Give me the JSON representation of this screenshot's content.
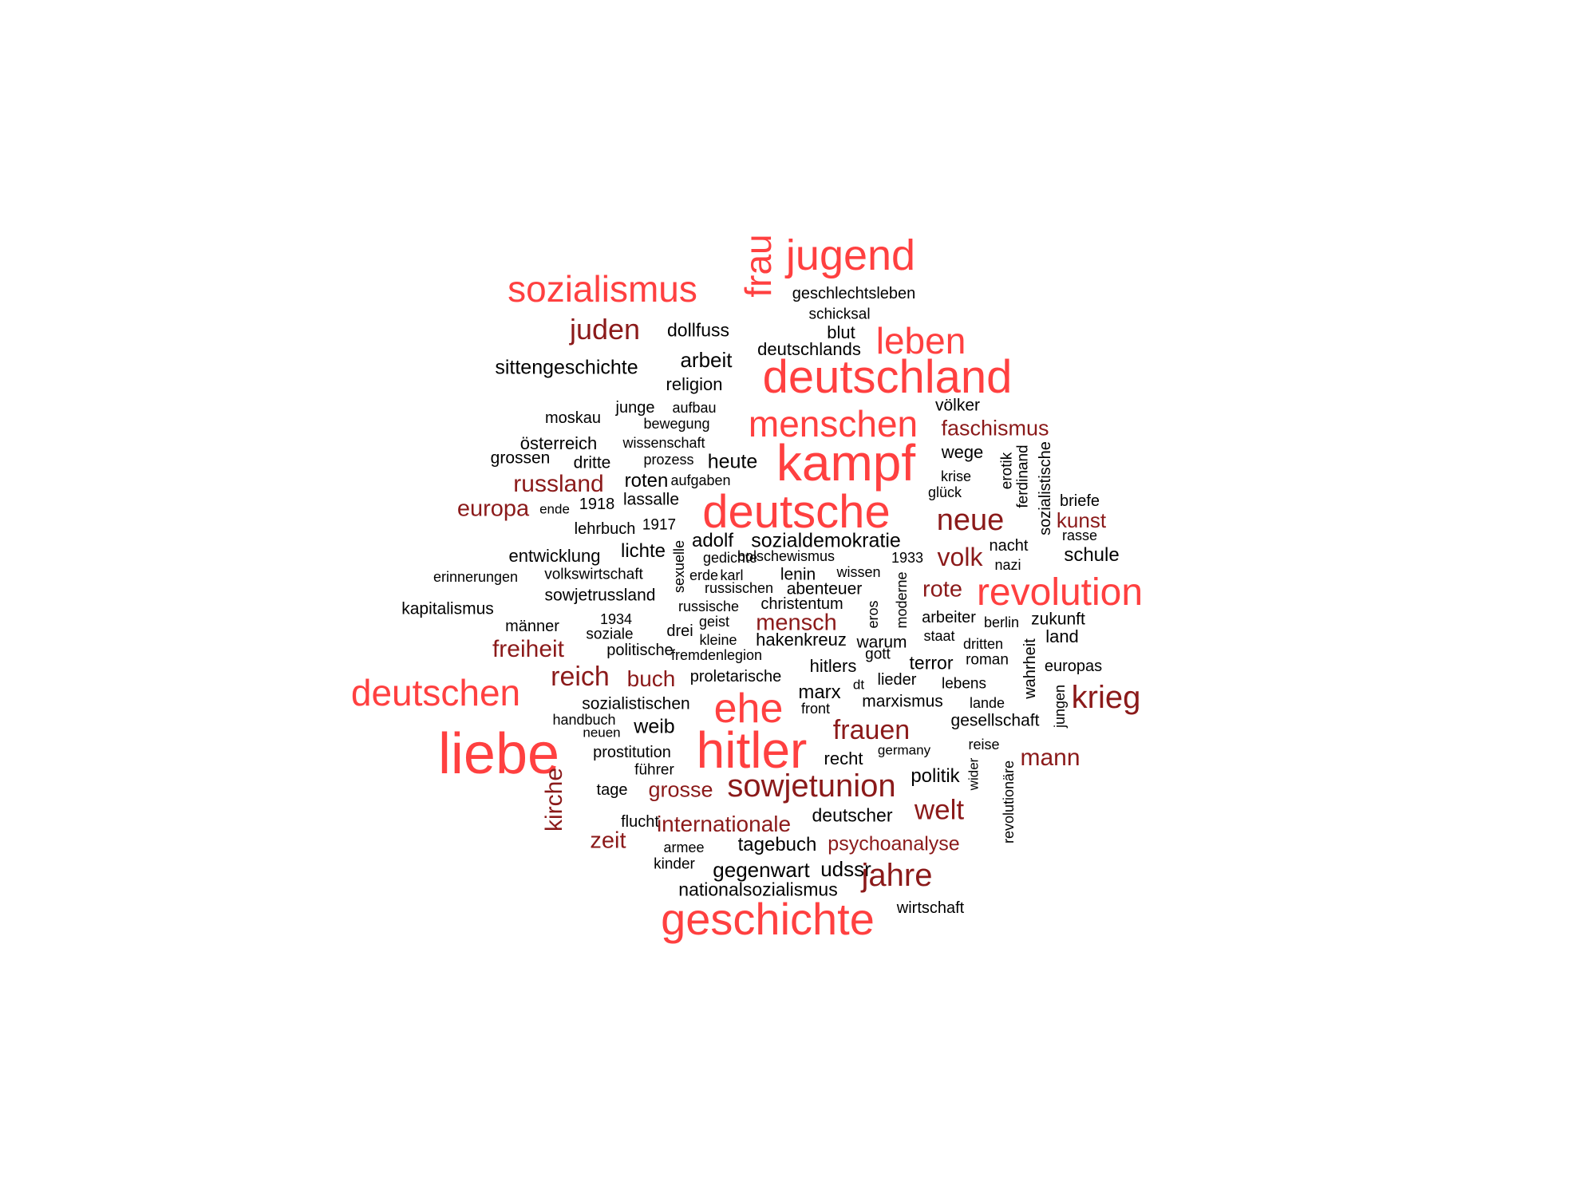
{
  "colors": {
    "red": "#ff4040",
    "dark": "#8b1a1a",
    "black": "#000000"
  },
  "words": [
    {
      "t": "sozialismus",
      "c": "red"
    },
    {
      "t": "jugend",
      "c": "red"
    },
    {
      "t": "frau",
      "c": "red"
    },
    {
      "t": "geschlechtsleben",
      "c": "black"
    },
    {
      "t": "schicksal",
      "c": "black"
    },
    {
      "t": "juden",
      "c": "dark"
    },
    {
      "t": "dollfuss",
      "c": "black"
    },
    {
      "t": "blut",
      "c": "black"
    },
    {
      "t": "leben",
      "c": "red"
    },
    {
      "t": "deutschlands",
      "c": "black"
    },
    {
      "t": "arbeit",
      "c": "black"
    },
    {
      "t": "sittengeschichte",
      "c": "black"
    },
    {
      "t": "deutschland",
      "c": "red"
    },
    {
      "t": "religion",
      "c": "black"
    },
    {
      "t": "völker",
      "c": "black"
    },
    {
      "t": "moskau",
      "c": "black"
    },
    {
      "t": "junge",
      "c": "black"
    },
    {
      "t": "aufbau",
      "c": "black"
    },
    {
      "t": "bewegung",
      "c": "black"
    },
    {
      "t": "menschen",
      "c": "red"
    },
    {
      "t": "faschismus",
      "c": "dark"
    },
    {
      "t": "österreich",
      "c": "black"
    },
    {
      "t": "wissenschaft",
      "c": "black"
    },
    {
      "t": "grossen",
      "c": "black"
    },
    {
      "t": "dritte",
      "c": "black"
    },
    {
      "t": "prozess",
      "c": "black"
    },
    {
      "t": "heute",
      "c": "black"
    },
    {
      "t": "kampf",
      "c": "red"
    },
    {
      "t": "wege",
      "c": "black"
    },
    {
      "t": "erotik",
      "c": "black"
    },
    {
      "t": "ferdinand",
      "c": "black"
    },
    {
      "t": "sozialistische",
      "c": "black"
    },
    {
      "t": "russland",
      "c": "dark"
    },
    {
      "t": "roten",
      "c": "black"
    },
    {
      "t": "aufgaben",
      "c": "black"
    },
    {
      "t": "krise",
      "c": "black"
    },
    {
      "t": "glück",
      "c": "black"
    },
    {
      "t": "europa",
      "c": "dark"
    },
    {
      "t": "ende",
      "c": "black"
    },
    {
      "t": "1918",
      "c": "black"
    },
    {
      "t": "lassalle",
      "c": "black"
    },
    {
      "t": "deutsche",
      "c": "red"
    },
    {
      "t": "neue",
      "c": "dark"
    },
    {
      "t": "briefe",
      "c": "black"
    },
    {
      "t": "kunst",
      "c": "dark"
    },
    {
      "t": "lehrbuch",
      "c": "black"
    },
    {
      "t": "1917",
      "c": "black"
    },
    {
      "t": "rasse",
      "c": "black"
    },
    {
      "t": "adolf",
      "c": "black"
    },
    {
      "t": "sozialdemokratie",
      "c": "black"
    },
    {
      "t": "nacht",
      "c": "black"
    },
    {
      "t": "entwicklung",
      "c": "black"
    },
    {
      "t": "lichte",
      "c": "black"
    },
    {
      "t": "sexuelle",
      "c": "black"
    },
    {
      "t": "gedichte",
      "c": "black"
    },
    {
      "t": "bolschewismus",
      "c": "black"
    },
    {
      "t": "1933",
      "c": "black"
    },
    {
      "t": "volk",
      "c": "dark"
    },
    {
      "t": "schule",
      "c": "black"
    },
    {
      "t": "nazi",
      "c": "black"
    },
    {
      "t": "erinnerungen",
      "c": "black"
    },
    {
      "t": "volkswirtschaft",
      "c": "black"
    },
    {
      "t": "erde",
      "c": "black"
    },
    {
      "t": "karl",
      "c": "black"
    },
    {
      "t": "lenin",
      "c": "black"
    },
    {
      "t": "wissen",
      "c": "black"
    },
    {
      "t": "russischen",
      "c": "black"
    },
    {
      "t": "abenteuer",
      "c": "black"
    },
    {
      "t": "rote",
      "c": "dark"
    },
    {
      "t": "revolution",
      "c": "red"
    },
    {
      "t": "sowjetrussland",
      "c": "black"
    },
    {
      "t": "kapitalismus",
      "c": "black"
    },
    {
      "t": "russische",
      "c": "black"
    },
    {
      "t": "christentum",
      "c": "black"
    },
    {
      "t": "eros",
      "c": "black"
    },
    {
      "t": "moderne",
      "c": "black"
    },
    {
      "t": "1934",
      "c": "black"
    },
    {
      "t": "geist",
      "c": "black"
    },
    {
      "t": "arbeiter",
      "c": "black"
    },
    {
      "t": "berlin",
      "c": "black"
    },
    {
      "t": "zukunft",
      "c": "black"
    },
    {
      "t": "männer",
      "c": "black"
    },
    {
      "t": "mensch",
      "c": "dark"
    },
    {
      "t": "drei",
      "c": "black"
    },
    {
      "t": "soziale",
      "c": "black"
    },
    {
      "t": "kleine",
      "c": "black"
    },
    {
      "t": "hakenkreuz",
      "c": "black"
    },
    {
      "t": "staat",
      "c": "black"
    },
    {
      "t": "warum",
      "c": "black"
    },
    {
      "t": "dritten",
      "c": "black"
    },
    {
      "t": "land",
      "c": "black"
    },
    {
      "t": "freiheit",
      "c": "dark"
    },
    {
      "t": "politische",
      "c": "black"
    },
    {
      "t": "fremdenlegion",
      "c": "black"
    },
    {
      "t": "gott",
      "c": "black"
    },
    {
      "t": "terror",
      "c": "black"
    },
    {
      "t": "roman",
      "c": "black"
    },
    {
      "t": "wahrheit",
      "c": "black"
    },
    {
      "t": "europas",
      "c": "black"
    },
    {
      "t": "hitlers",
      "c": "black"
    },
    {
      "t": "deutschen",
      "c": "red"
    },
    {
      "t": "reich",
      "c": "dark"
    },
    {
      "t": "buch",
      "c": "dark"
    },
    {
      "t": "proletarische",
      "c": "black"
    },
    {
      "t": "dt",
      "c": "black"
    },
    {
      "t": "lieder",
      "c": "black"
    },
    {
      "t": "lebens",
      "c": "black"
    },
    {
      "t": "krieg",
      "c": "dark"
    },
    {
      "t": "marx",
      "c": "black"
    },
    {
      "t": "sozialistischen",
      "c": "black"
    },
    {
      "t": "ehe",
      "c": "red"
    },
    {
      "t": "front",
      "c": "black"
    },
    {
      "t": "marxismus",
      "c": "black"
    },
    {
      "t": "lande",
      "c": "black"
    },
    {
      "t": "jungen",
      "c": "black"
    },
    {
      "t": "handbuch",
      "c": "black"
    },
    {
      "t": "neuen",
      "c": "black"
    },
    {
      "t": "weib",
      "c": "black"
    },
    {
      "t": "frauen",
      "c": "dark"
    },
    {
      "t": "gesellschaft",
      "c": "black"
    },
    {
      "t": "liebe",
      "c": "red"
    },
    {
      "t": "hitler",
      "c": "red"
    },
    {
      "t": "reise",
      "c": "black"
    },
    {
      "t": "prostitution",
      "c": "black"
    },
    {
      "t": "germany",
      "c": "black"
    },
    {
      "t": "recht",
      "c": "black"
    },
    {
      "t": "mann",
      "c": "dark"
    },
    {
      "t": "führer",
      "c": "black"
    },
    {
      "t": "politik",
      "c": "black"
    },
    {
      "t": "wider",
      "c": "black"
    },
    {
      "t": "kirche",
      "c": "dark"
    },
    {
      "t": "tage",
      "c": "black"
    },
    {
      "t": "grosse",
      "c": "dark"
    },
    {
      "t": "sowjetunion",
      "c": "dark"
    },
    {
      "t": "revolutionäre",
      "c": "black"
    },
    {
      "t": "welt",
      "c": "dark"
    },
    {
      "t": "flucht",
      "c": "black"
    },
    {
      "t": "internationale",
      "c": "dark"
    },
    {
      "t": "deutscher",
      "c": "black"
    },
    {
      "t": "zeit",
      "c": "dark"
    },
    {
      "t": "armee",
      "c": "black"
    },
    {
      "t": "tagebuch",
      "c": "black"
    },
    {
      "t": "psychoanalyse",
      "c": "dark"
    },
    {
      "t": "kinder",
      "c": "black"
    },
    {
      "t": "gegenwart",
      "c": "black"
    },
    {
      "t": "udssr",
      "c": "black"
    },
    {
      "t": "jahre",
      "c": "dark"
    },
    {
      "t": "nationalsozialismus",
      "c": "black"
    },
    {
      "t": "wirtschaft",
      "c": "black"
    },
    {
      "t": "geschichte",
      "c": "red"
    }
  ]
}
